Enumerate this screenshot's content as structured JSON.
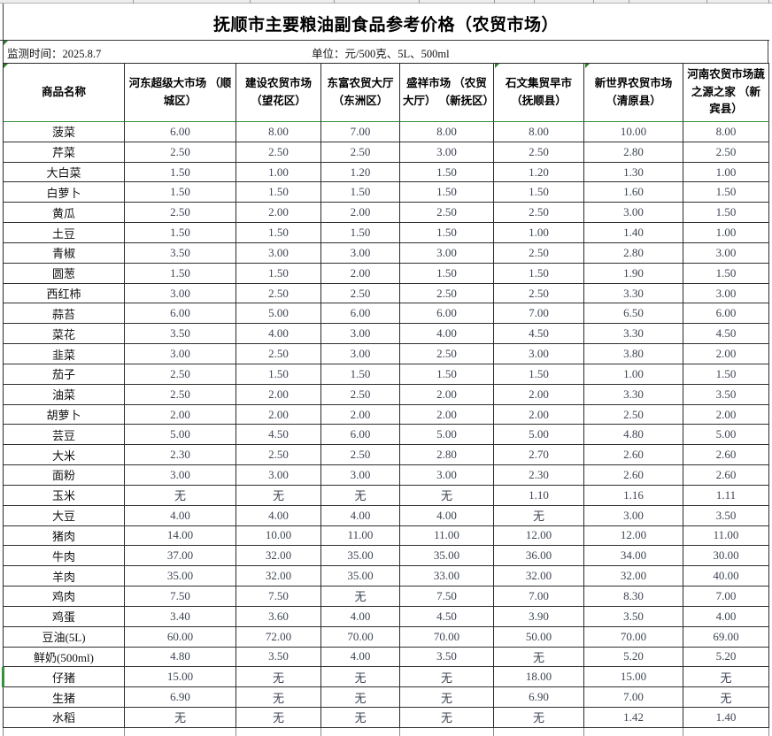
{
  "title": "抚顺市主要粮油副食品参考价格（农贸市场）",
  "meta": {
    "monitor_time": "监测时间：2025.8.7",
    "unit": "单位：元/500克、5L、500ml"
  },
  "table": {
    "product_header": "商品名称",
    "market_headers": [
      "河东超级大市场 （顺城区）",
      "建设农贸市场 （望花区）",
      "东富农贸大厅 （东洲区）",
      "盛祥市场 （农贸大厅）  （新抚区）",
      "石文集贸早市 （抚顺县）",
      "新世界农贸市场 （清原县）",
      "河南农贸市场蔬之源之家 （新宾县）"
    ],
    "no_price_text": "无",
    "rows": [
      {
        "name": "菠菜",
        "prices": [
          "6.00",
          "8.00",
          "7.00",
          "8.00",
          "8.00",
          "10.00",
          "8.00"
        ]
      },
      {
        "name": "芹菜",
        "prices": [
          "2.50",
          "2.50",
          "2.50",
          "3.00",
          "2.50",
          "2.80",
          "2.50"
        ]
      },
      {
        "name": "大白菜",
        "prices": [
          "1.50",
          "1.00",
          "1.20",
          "1.50",
          "1.20",
          "1.30",
          "1.00"
        ]
      },
      {
        "name": "白萝卜",
        "prices": [
          "1.50",
          "1.50",
          "1.50",
          "1.50",
          "1.50",
          "1.60",
          "1.50"
        ]
      },
      {
        "name": "黄瓜",
        "prices": [
          "2.50",
          "2.00",
          "2.00",
          "2.50",
          "2.50",
          "3.00",
          "1.50"
        ]
      },
      {
        "name": "土豆",
        "prices": [
          "1.50",
          "1.50",
          "1.50",
          "1.50",
          "1.00",
          "1.40",
          "1.00"
        ]
      },
      {
        "name": "青椒",
        "prices": [
          "3.50",
          "3.00",
          "3.00",
          "3.00",
          "2.50",
          "2.80",
          "3.00"
        ]
      },
      {
        "name": "圆葱",
        "prices": [
          "1.50",
          "1.50",
          "2.00",
          "1.50",
          "1.50",
          "1.90",
          "1.50"
        ]
      },
      {
        "name": "西红柿",
        "prices": [
          "3.00",
          "2.50",
          "2.50",
          "2.50",
          "2.50",
          "3.30",
          "3.00"
        ]
      },
      {
        "name": "蒜苔",
        "prices": [
          "6.00",
          "5.00",
          "6.00",
          "6.00",
          "7.00",
          "6.50",
          "6.00"
        ]
      },
      {
        "name": "菜花",
        "prices": [
          "3.50",
          "4.00",
          "3.00",
          "4.00",
          "4.50",
          "3.30",
          "4.50"
        ]
      },
      {
        "name": "韭菜",
        "prices": [
          "3.00",
          "2.50",
          "3.00",
          "2.50",
          "3.00",
          "3.80",
          "2.00"
        ]
      },
      {
        "name": "茄子",
        "prices": [
          "2.50",
          "1.50",
          "1.50",
          "1.50",
          "1.50",
          "1.00",
          "1.50"
        ]
      },
      {
        "name": "油菜",
        "prices": [
          "2.50",
          "2.00",
          "2.50",
          "2.00",
          "2.00",
          "3.30",
          "3.50"
        ]
      },
      {
        "name": "胡萝卜",
        "prices": [
          "2.00",
          "2.00",
          "2.00",
          "2.00",
          "2.00",
          "2.50",
          "2.00"
        ]
      },
      {
        "name": "芸豆",
        "prices": [
          "5.00",
          "4.50",
          "6.00",
          "5.00",
          "5.00",
          "4.80",
          "5.00"
        ]
      },
      {
        "name": "大米",
        "prices": [
          "2.30",
          "2.50",
          "2.50",
          "2.80",
          "2.70",
          "2.60",
          "2.60"
        ]
      },
      {
        "name": "面粉",
        "prices": [
          "3.00",
          "3.00",
          "3.00",
          "3.00",
          "2.30",
          "2.60",
          "2.60"
        ]
      },
      {
        "name": "玉米",
        "prices": [
          "无",
          "无",
          "无",
          "无",
          "1.10",
          "1.16",
          "1.11"
        ]
      },
      {
        "name": "大豆",
        "prices": [
          "4.00",
          "4.00",
          "4.00",
          "4.00",
          "无",
          "3.00",
          "3.50"
        ]
      },
      {
        "name": "猪肉",
        "prices": [
          "14.00",
          "10.00",
          "11.00",
          "11.00",
          "12.00",
          "12.00",
          "11.00"
        ]
      },
      {
        "name": "牛肉",
        "prices": [
          "37.00",
          "32.00",
          "35.00",
          "35.00",
          "36.00",
          "34.00",
          "30.00"
        ]
      },
      {
        "name": "羊肉",
        "prices": [
          "35.00",
          "32.00",
          "35.00",
          "33.00",
          "32.00",
          "32.00",
          "40.00"
        ]
      },
      {
        "name": "鸡肉",
        "prices": [
          "7.50",
          "7.50",
          "无",
          "7.50",
          "7.00",
          "8.30",
          "7.00"
        ]
      },
      {
        "name": "鸡蛋",
        "prices": [
          "3.40",
          "3.60",
          "4.00",
          "4.50",
          "3.90",
          "3.50",
          "4.00"
        ]
      },
      {
        "name": "豆油(5L)",
        "prices": [
          "60.00",
          "72.00",
          "70.00",
          "70.00",
          "50.00",
          "70.00",
          "69.00"
        ]
      },
      {
        "name": "鲜奶(500ml)",
        "prices": [
          "4.80",
          "3.50",
          "4.00",
          "3.50",
          "无",
          "5.20",
          "5.20"
        ]
      },
      {
        "name": "仔猪",
        "prices": [
          "15.00",
          "无",
          "无",
          "无",
          "18.00",
          "15.00",
          "无"
        ]
      },
      {
        "name": "生猪",
        "prices": [
          "6.90",
          "无",
          "无",
          "无",
          "6.90",
          "7.00",
          "无"
        ]
      },
      {
        "name": "水稻",
        "prices": [
          "无",
          "无",
          "无",
          "无",
          "无",
          "1.42",
          "1.40"
        ]
      }
    ]
  },
  "colors": {
    "grid_green": "#35903f",
    "triangle_green": "#2e7d32",
    "grid_black": "#2a2a2a",
    "number_text": "#3e4553"
  }
}
